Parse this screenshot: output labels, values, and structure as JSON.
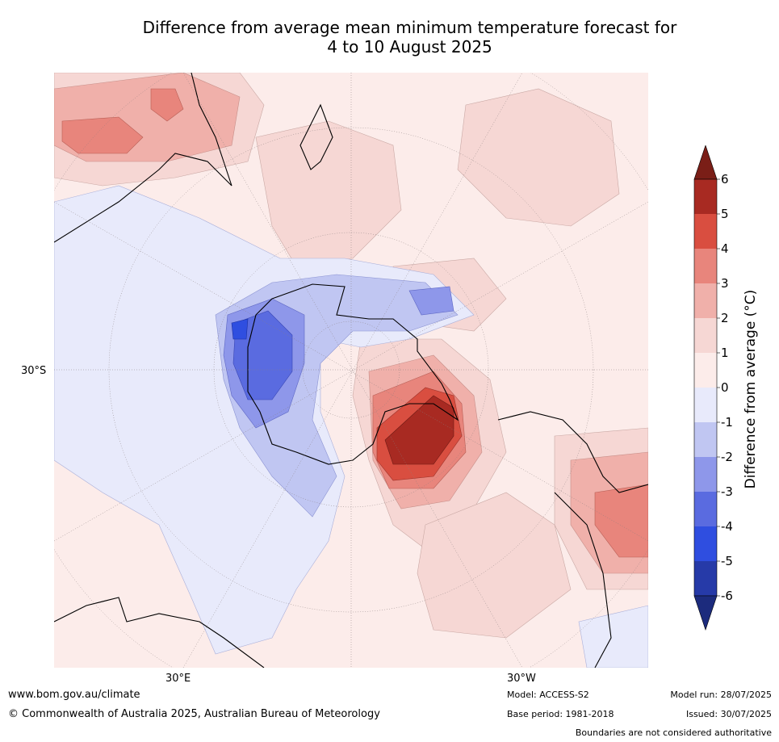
{
  "title": {
    "line1": "Difference from average mean minimum temperature forecast for",
    "line2": "4 to 10 August 2025"
  },
  "map": {
    "projection": "south-polar stereographic",
    "longitude_labels": [
      "30°E",
      "30°W"
    ],
    "latitude_labels": [
      "30°S"
    ],
    "features": [
      "Strong warm anomaly (+4 to +6 °C) over Weddell Sea / Antarctic Peninsula",
      "Warm anomaly (+2 to +4 °C) off southern South America",
      "Cold anomaly (-2 to -5 °C) over East Antarctica (Wilkes Land)",
      "Mostly weak positive anomaly (0 to +1 °C) elsewhere over Southern Ocean"
    ],
    "colors": {
      "ocean_background": "#fcecea",
      "land_outline": "#000000"
    }
  },
  "colorbar": {
    "label": "Difference from average (°C)",
    "tick_labels": [
      "6",
      "5",
      "4",
      "3",
      "2",
      "1",
      "0",
      "-1",
      "-2",
      "-3",
      "-4",
      "-5",
      "-6"
    ],
    "bins": [
      {
        "range": "> 6",
        "color": "#7a1e17"
      },
      {
        "range": "5 to 6",
        "color": "#a82a22"
      },
      {
        "range": "4 to 5",
        "color": "#d94e40"
      },
      {
        "range": "3 to 4",
        "color": "#e8857c"
      },
      {
        "range": "2 to 3",
        "color": "#f0b0aa"
      },
      {
        "range": "1 to 2",
        "color": "#f6d7d4"
      },
      {
        "range": "0 to 1",
        "color": "#fcecea"
      },
      {
        "range": "-1 to 0",
        "color": "#e8eafb"
      },
      {
        "range": "-2 to -1",
        "color": "#c0c6f2"
      },
      {
        "range": "-3 to -2",
        "color": "#8e97ea"
      },
      {
        "range": "-4 to -3",
        "color": "#5a6be0"
      },
      {
        "range": "-5 to -4",
        "color": "#2f4ee0"
      },
      {
        "range": "-6 to -5",
        "color": "#263aa8"
      },
      {
        "range": "< -6",
        "color": "#1c2b7d"
      }
    ]
  },
  "footer": {
    "website": "www.bom.gov.au/climate",
    "copyright": "© Commonwealth of Australia 2025, Australian Bureau of Meteorology",
    "model": "Model: ACCESS-S2",
    "base_period": "Base period: 1981-2018",
    "model_run": "Model run: 28/07/2025",
    "issued": "Issued: 30/07/2025",
    "disclaimer": "Boundaries are not considered authoritative"
  }
}
